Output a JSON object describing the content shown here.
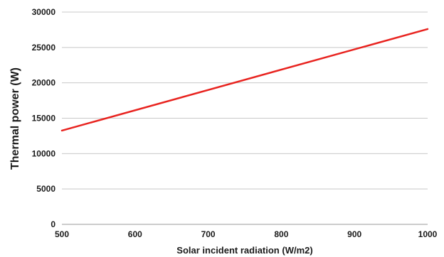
{
  "chart_data": {
    "type": "line",
    "title": "",
    "xlabel": "Solar incident radiation (W/m2)",
    "ylabel": "Thermal power (W)",
    "xlim": [
      500,
      1000
    ],
    "ylim": [
      0,
      30000
    ],
    "x_ticks": [
      500,
      600,
      700,
      800,
      900,
      1000
    ],
    "y_ticks": [
      0,
      5000,
      10000,
      15000,
      20000,
      25000,
      30000
    ],
    "grid": "horizontal",
    "legend": "none",
    "series": [
      {
        "color": "#e8231f",
        "x": [
          500,
          1000
        ],
        "y": [
          13250,
          27600
        ]
      }
    ]
  }
}
